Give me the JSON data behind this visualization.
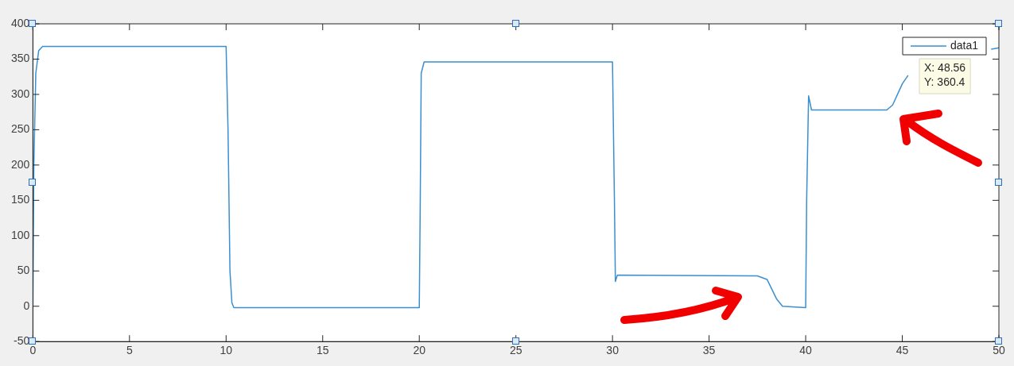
{
  "chart_data": {
    "type": "line",
    "x": [
      0,
      0.05,
      0.15,
      0.3,
      0.5,
      10.0,
      10.1,
      10.2,
      10.3,
      10.4,
      20.0,
      20.05,
      20.1,
      20.25,
      30.0,
      30.1,
      30.15,
      30.25,
      37.5,
      38.0,
      38.5,
      38.8,
      40.0,
      40.05,
      40.15,
      40.3,
      44.2,
      44.5,
      45.0,
      45.3,
      45.5,
      49.6,
      50
    ],
    "series": [
      {
        "name": "data1",
        "color": "#3a8fd0",
        "values": [
          0,
          200,
          330,
          362,
          368,
          368,
          250,
          50,
          5,
          -2,
          -2,
          150,
          330,
          346,
          346,
          150,
          35,
          44,
          43,
          38,
          10,
          0,
          -2,
          150,
          298,
          278,
          278,
          285,
          315,
          327,
          null,
          364,
          366
        ]
      }
    ],
    "xlim": [
      0,
      50
    ],
    "xticks": [
      0,
      5,
      10,
      15,
      20,
      25,
      30,
      35,
      40,
      45,
      50
    ],
    "ylim": [
      -50,
      400
    ],
    "yticks": [
      -50,
      0,
      50,
      100,
      150,
      200,
      250,
      300,
      350,
      400
    ],
    "legend": "top right",
    "marker": "none",
    "line_style": "solid",
    "annotations": [
      "X: 48.56\nY: 360.4"
    ]
  }
}
